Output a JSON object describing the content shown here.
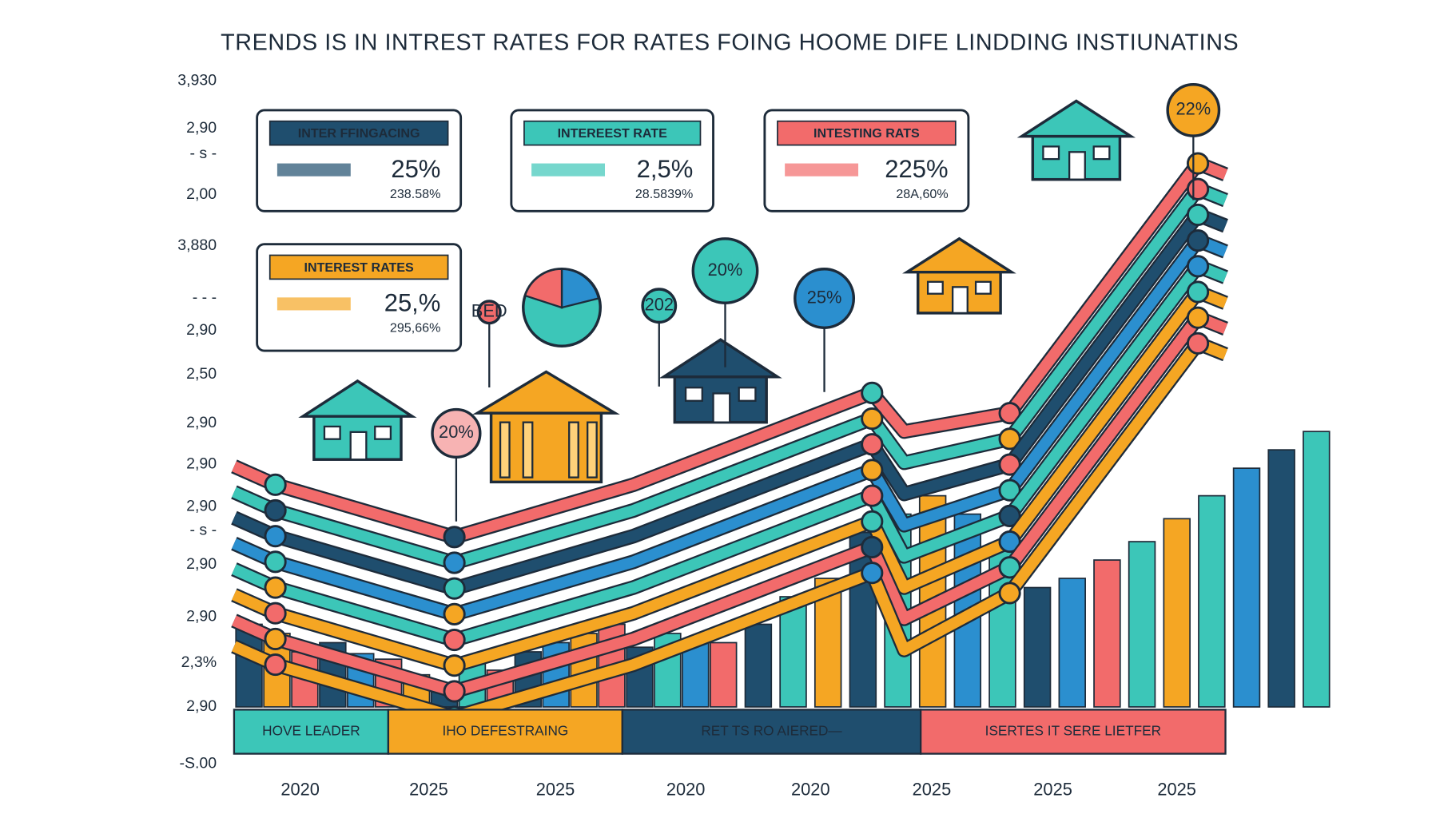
{
  "title": "TRENDS  IS IN INTREST RATES FOR RATES FOING HOOME DIFE  LINDDING INSTIUNATINS",
  "y_labels": [
    "3,930",
    "2,90",
    "- s -",
    "2,00",
    "3,880",
    "- - -",
    "2,90",
    "2,50",
    "2,90",
    "2,90",
    "2,90",
    "- s -",
    "2,90",
    "2,90",
    "2,3%",
    "2,90",
    "-S.00"
  ],
  "x_labels": [
    "2020",
    "2025",
    "2025",
    "2020",
    "2020",
    "2025",
    "2025",
    "2025"
  ],
  "callouts": [
    {
      "title": "INTER FFINGACING",
      "value": "25%",
      "sub": "238.58%"
    },
    {
      "title": "INTEREEST RATE",
      "value": "2,5%",
      "sub": "28.5839%"
    },
    {
      "title": "INTESTING RATS",
      "value": "225%",
      "sub": "28A,60%"
    },
    {
      "title": "INTEREST RATES",
      "value": "25,%",
      "sub": "295,66%"
    }
  ],
  "bubbles": [
    "20%",
    "202",
    "25%",
    "22%",
    "20%",
    "BED"
  ],
  "bands": [
    "HOVE LEADER",
    "IHO DEFESTRAING",
    "RET TS RO AIERED—",
    "ISERTES IT SERE LIETFER"
  ]
}
